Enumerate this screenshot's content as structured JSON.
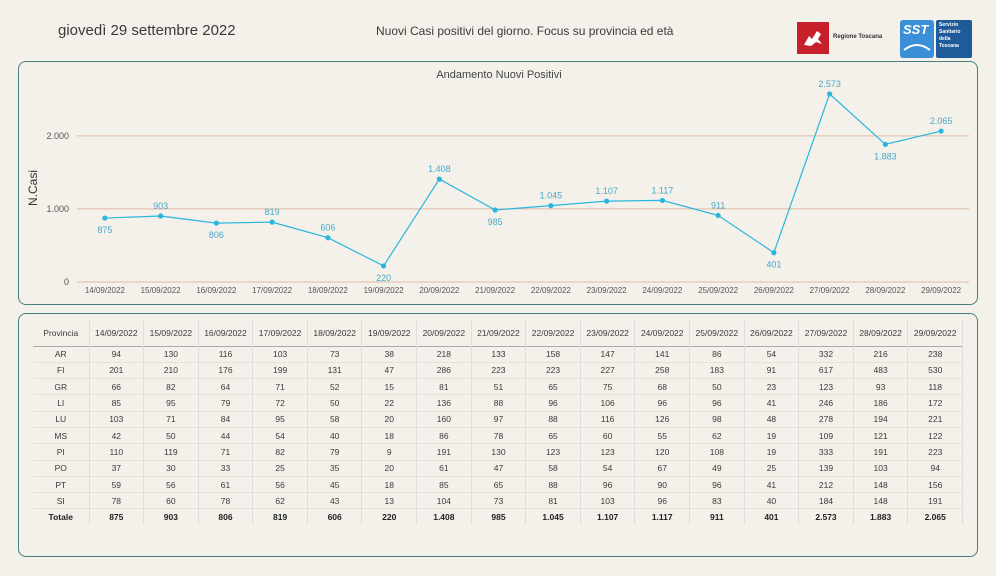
{
  "header": {
    "date": "giovedì 29 settembre 2022",
    "title": "Nuovi Casi positivi del giorno. Focus su provincia ed età",
    "logo_rt": "Regione Toscana",
    "logo_sst": "SST",
    "logo_sst_sub": "Servizio\nSanitario\ndella\nToscana"
  },
  "chart_data": {
    "type": "line",
    "title": "Andamento Nuovi Positivi",
    "ylabel": "N.Casi",
    "xlabel": "",
    "categories": [
      "14/09/2022",
      "15/09/2022",
      "16/09/2022",
      "17/09/2022",
      "18/09/2022",
      "19/09/2022",
      "20/09/2022",
      "21/09/2022",
      "22/09/2022",
      "23/09/2022",
      "24/09/2022",
      "25/09/2022",
      "26/09/2022",
      "27/09/2022",
      "28/09/2022",
      "29/09/2022"
    ],
    "values": [
      875,
      903,
      806,
      819,
      606,
      220,
      1408,
      985,
      1045,
      1107,
      1117,
      911,
      401,
      2573,
      1883,
      2065
    ],
    "value_labels": [
      "875",
      "903",
      "806",
      "819",
      "606",
      "220",
      "1.408",
      "985",
      "1.045",
      "1.107",
      "1.117",
      "911",
      "401",
      "2.573",
      "1.883",
      "2.065"
    ],
    "yticks": [
      0,
      1000,
      2000
    ],
    "ytick_labels": [
      "0",
      "1.000",
      "2.000"
    ],
    "ylim": [
      0,
      2600
    ],
    "grid": true,
    "line_color": "#29b6de",
    "grid_color": "#e0b9a3",
    "label_color": "#4aa8c8"
  },
  "table": {
    "header_label": "Provincia",
    "dates": [
      "14/09/2022",
      "15/09/2022",
      "16/09/2022",
      "17/09/2022",
      "18/09/2022",
      "19/09/2022",
      "20/09/2022",
      "21/09/2022",
      "22/09/2022",
      "23/09/2022",
      "24/09/2022",
      "25/09/2022",
      "26/09/2022",
      "27/09/2022",
      "28/09/2022",
      "29/09/2022"
    ],
    "rows": [
      {
        "prov": "AR",
        "values": [
          "94",
          "130",
          "116",
          "103",
          "73",
          "38",
          "218",
          "133",
          "158",
          "147",
          "141",
          "86",
          "54",
          "332",
          "216",
          "238"
        ]
      },
      {
        "prov": "FI",
        "values": [
          "201",
          "210",
          "176",
          "199",
          "131",
          "47",
          "286",
          "223",
          "223",
          "227",
          "258",
          "183",
          "91",
          "617",
          "483",
          "530"
        ]
      },
      {
        "prov": "GR",
        "values": [
          "66",
          "82",
          "64",
          "71",
          "52",
          "15",
          "81",
          "51",
          "65",
          "75",
          "68",
          "50",
          "23",
          "123",
          "93",
          "118"
        ]
      },
      {
        "prov": "LI",
        "values": [
          "85",
          "95",
          "79",
          "72",
          "50",
          "22",
          "136",
          "88",
          "96",
          "106",
          "96",
          "96",
          "41",
          "246",
          "186",
          "172"
        ]
      },
      {
        "prov": "LU",
        "values": [
          "103",
          "71",
          "84",
          "95",
          "58",
          "20",
          "160",
          "97",
          "88",
          "116",
          "126",
          "98",
          "48",
          "278",
          "194",
          "221"
        ]
      },
      {
        "prov": "MS",
        "values": [
          "42",
          "50",
          "44",
          "54",
          "40",
          "18",
          "86",
          "78",
          "65",
          "60",
          "55",
          "62",
          "19",
          "109",
          "121",
          "122"
        ]
      },
      {
        "prov": "PI",
        "values": [
          "110",
          "119",
          "71",
          "82",
          "79",
          "9",
          "191",
          "130",
          "123",
          "123",
          "120",
          "108",
          "19",
          "333",
          "191",
          "223"
        ]
      },
      {
        "prov": "PO",
        "values": [
          "37",
          "30",
          "33",
          "25",
          "35",
          "20",
          "61",
          "47",
          "58",
          "54",
          "67",
          "49",
          "25",
          "139",
          "103",
          "94"
        ]
      },
      {
        "prov": "PT",
        "values": [
          "59",
          "56",
          "61",
          "56",
          "45",
          "18",
          "85",
          "65",
          "88",
          "96",
          "90",
          "96",
          "41",
          "212",
          "148",
          "156"
        ]
      },
      {
        "prov": "SI",
        "values": [
          "78",
          "60",
          "78",
          "62",
          "43",
          "13",
          "104",
          "73",
          "81",
          "103",
          "96",
          "83",
          "40",
          "184",
          "148",
          "191"
        ]
      }
    ],
    "total": {
      "prov": "Totale",
      "values": [
        "875",
        "903",
        "806",
        "819",
        "606",
        "220",
        "1.408",
        "985",
        "1.045",
        "1.107",
        "1.117",
        "911",
        "401",
        "2.573",
        "1.883",
        "2.065"
      ]
    }
  }
}
